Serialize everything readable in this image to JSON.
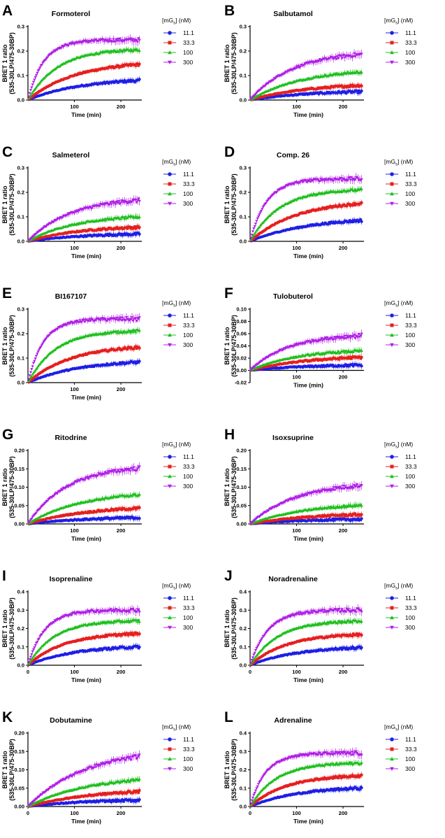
{
  "figure": {
    "legend_title": {
      "prefix": "[mG",
      "sub": "s",
      "suffix": "] (nM)"
    },
    "concentrations": [
      "11.1",
      "33.3",
      "100",
      "300"
    ],
    "series_colors": [
      "#1f1fe6",
      "#e61f1f",
      "#1fbf1f",
      "#b01fe6"
    ],
    "markers": [
      "circle",
      "square",
      "triangle-up",
      "triangle-down"
    ]
  },
  "chart_data": [
    {
      "type": "line",
      "panel": "A",
      "title": "Formoterol",
      "xlabel": "Time (min)",
      "ylabel": [
        "BRET 1 ratio",
        "(535-30LP/475-30BP)"
      ],
      "xlim": [
        0,
        245
      ],
      "ylim": [
        0,
        0.3
      ],
      "yticks": [
        "0.0",
        "0.1",
        "0.2",
        "0.3"
      ],
      "yticks_values": [
        0,
        0.1,
        0.2,
        0.3
      ],
      "xticks": [
        "100",
        "200"
      ],
      "xticks_values": [
        100,
        200
      ],
      "series": [
        {
          "name": "11.1",
          "plateau": 0.09,
          "k": 0.009
        },
        {
          "name": "33.3",
          "plateau": 0.16,
          "k": 0.01
        },
        {
          "name": "100",
          "plateau": 0.21,
          "k": 0.016
        },
        {
          "name": "300",
          "plateau": 0.245,
          "k": 0.03
        }
      ]
    },
    {
      "type": "line",
      "panel": "B",
      "title": "Salbutamol",
      "xlabel": "Time (min)",
      "ylabel": [
        "BRET 1 ratio",
        "(535-30LP/475-30BP)"
      ],
      "xlim": [
        0,
        245
      ],
      "ylim": [
        0,
        0.3
      ],
      "yticks": [
        "0.0",
        "0.1",
        "0.2",
        "0.3"
      ],
      "yticks_values": [
        0,
        0.1,
        0.2,
        0.3
      ],
      "xticks": [
        "100",
        "200"
      ],
      "xticks_values": [
        100,
        200
      ],
      "series": [
        {
          "name": "11.1",
          "plateau": 0.04,
          "k": 0.008
        },
        {
          "name": "33.3",
          "plateau": 0.07,
          "k": 0.008
        },
        {
          "name": "100",
          "plateau": 0.13,
          "k": 0.009
        },
        {
          "name": "300",
          "plateau": 0.2,
          "k": 0.011
        }
      ]
    },
    {
      "type": "line",
      "panel": "C",
      "title": "Salmeterol",
      "xlabel": "Time (min)",
      "ylabel": [
        "BRET 1 ratio",
        "(535-30LP/475-30BP)"
      ],
      "xlim": [
        0,
        245
      ],
      "ylim": [
        0,
        0.3
      ],
      "yticks": [
        "0.0",
        "0.1",
        "0.2",
        "0.3"
      ],
      "yticks_values": [
        0,
        0.1,
        0.2,
        0.3
      ],
      "xticks": [
        "100",
        "200"
      ],
      "xticks_values": [
        100,
        200
      ],
      "series": [
        {
          "name": "11.1",
          "plateau": 0.035,
          "k": 0.008
        },
        {
          "name": "33.3",
          "plateau": 0.065,
          "k": 0.009
        },
        {
          "name": "100",
          "plateau": 0.11,
          "k": 0.01
        },
        {
          "name": "300",
          "plateau": 0.18,
          "k": 0.011
        }
      ]
    },
    {
      "type": "line",
      "panel": "D",
      "title": "Comp. 26",
      "xlabel": "Time (min)",
      "ylabel": [
        "BRET 1 ratio",
        "(535-30LP/475-30BP)"
      ],
      "xlim": [
        0,
        245
      ],
      "ylim": [
        0,
        0.3
      ],
      "yticks": [
        "0.0",
        "0.1",
        "0.2",
        "0.3"
      ],
      "yticks_values": [
        0,
        0.1,
        0.2,
        0.3
      ],
      "xticks": [
        "100",
        "200"
      ],
      "xticks_values": [
        100,
        200
      ],
      "series": [
        {
          "name": "11.1",
          "plateau": 0.1,
          "k": 0.008
        },
        {
          "name": "33.3",
          "plateau": 0.17,
          "k": 0.01
        },
        {
          "name": "100",
          "plateau": 0.215,
          "k": 0.016
        },
        {
          "name": "300",
          "plateau": 0.255,
          "k": 0.028
        }
      ]
    },
    {
      "type": "line",
      "panel": "E",
      "title": "BI167107",
      "xlabel": "Time (min)",
      "ylabel": [
        "BRET 1 ratio",
        "(535-30LP/475-30BP)"
      ],
      "xlim": [
        0,
        245
      ],
      "ylim": [
        0,
        0.3
      ],
      "yticks": [
        "0.0",
        "0.1",
        "0.2",
        "0.3"
      ],
      "yticks_values": [
        0,
        0.1,
        0.2,
        0.3
      ],
      "xticks": [
        "100",
        "200"
      ],
      "xticks_values": [
        100,
        200
      ],
      "series": [
        {
          "name": "11.1",
          "plateau": 0.095,
          "k": 0.009
        },
        {
          "name": "33.3",
          "plateau": 0.155,
          "k": 0.011
        },
        {
          "name": "100",
          "plateau": 0.215,
          "k": 0.017
        },
        {
          "name": "300",
          "plateau": 0.26,
          "k": 0.03
        }
      ]
    },
    {
      "type": "line",
      "panel": "F",
      "title": "Tulobuterol",
      "xlabel": "Time (min)",
      "ylabel": [
        "BRET 1 ratio",
        "(535-30LP/475-30BP)"
      ],
      "xlim": [
        0,
        245
      ],
      "ylim": [
        -0.02,
        0.1
      ],
      "yticks": [
        "-0.02",
        "0.00",
        "0.02",
        "0.04",
        "0.06",
        "0.08",
        "0.10"
      ],
      "yticks_values": [
        -0.02,
        0,
        0.02,
        0.04,
        0.06,
        0.08,
        0.1
      ],
      "xticks": [
        "100",
        "200"
      ],
      "xticks_values": [
        100,
        200
      ],
      "series": [
        {
          "name": "11.1",
          "plateau": 0.01,
          "k": 0.008
        },
        {
          "name": "33.3",
          "plateau": 0.025,
          "k": 0.008
        },
        {
          "name": "100",
          "plateau": 0.035,
          "k": 0.01
        },
        {
          "name": "300",
          "plateau": 0.06,
          "k": 0.012
        }
      ]
    },
    {
      "type": "line",
      "panel": "G",
      "title": "Ritodrine",
      "xlabel": "Time (min)",
      "ylabel": [
        "BRET 1 ratio",
        "(535-30LP/475-30BP)"
      ],
      "xlim": [
        0,
        245
      ],
      "ylim": [
        0,
        0.2
      ],
      "yticks": [
        "0.00",
        "0.05",
        "0.10",
        "0.15",
        "0.20"
      ],
      "yticks_values": [
        0,
        0.05,
        0.1,
        0.15,
        0.2
      ],
      "xticks": [
        "100",
        "200"
      ],
      "xticks_values": [
        100,
        200
      ],
      "series": [
        {
          "name": "11.1",
          "plateau": 0.02,
          "k": 0.008
        },
        {
          "name": "33.3",
          "plateau": 0.05,
          "k": 0.008
        },
        {
          "name": "100",
          "plateau": 0.09,
          "k": 0.009
        },
        {
          "name": "300",
          "plateau": 0.16,
          "k": 0.012
        }
      ]
    },
    {
      "type": "line",
      "panel": "H",
      "title": "Isoxsuprine",
      "xlabel": "Time (min)",
      "ylabel": [
        "BRET 1 ratio",
        "(535-30LP/475-30BP)"
      ],
      "xlim": [
        0,
        245
      ],
      "ylim": [
        0,
        0.2
      ],
      "yticks": [
        "0.00",
        "0.05",
        "0.10",
        "0.15",
        "0.20"
      ],
      "yticks_values": [
        0,
        0.05,
        0.1,
        0.15,
        0.2
      ],
      "xticks": [
        "100",
        "200"
      ],
      "xticks_values": [
        100,
        200
      ],
      "series": [
        {
          "name": "11.1",
          "plateau": 0.015,
          "k": 0.008
        },
        {
          "name": "33.3",
          "plateau": 0.03,
          "k": 0.008
        },
        {
          "name": "100",
          "plateau": 0.06,
          "k": 0.008
        },
        {
          "name": "300",
          "plateau": 0.115,
          "k": 0.01
        }
      ]
    },
    {
      "type": "line",
      "panel": "I",
      "title": "Isoprenaline",
      "xlabel": "Time (min)",
      "ylabel": [
        "BRET 1 ratio",
        "(535-30LP/475-30BP)"
      ],
      "xlim": [
        0,
        245
      ],
      "ylim": [
        0,
        0.4
      ],
      "yticks": [
        "0.0",
        "0.1",
        "0.2",
        "0.3",
        "0.4"
      ],
      "yticks_values": [
        0,
        0.1,
        0.2,
        0.3,
        0.4
      ],
      "xticks": [
        "0",
        "100",
        "200"
      ],
      "xticks_values": [
        0,
        100,
        200
      ],
      "series": [
        {
          "name": "11.1",
          "plateau": 0.11,
          "k": 0.01
        },
        {
          "name": "33.3",
          "plateau": 0.18,
          "k": 0.013
        },
        {
          "name": "100",
          "plateau": 0.245,
          "k": 0.018
        },
        {
          "name": "300",
          "plateau": 0.3,
          "k": 0.028
        }
      ]
    },
    {
      "type": "line",
      "panel": "J",
      "title": "Noradrenaline",
      "xlabel": "Time (min)",
      "ylabel": [
        "BRET 1 ratio",
        "(535-30LP/475-30BP)"
      ],
      "xlim": [
        0,
        245
      ],
      "ylim": [
        0,
        0.4
      ],
      "yticks": [
        "0.0",
        "0.1",
        "0.2",
        "0.3",
        "0.4"
      ],
      "yticks_values": [
        0,
        0.1,
        0.2,
        0.3,
        0.4
      ],
      "xticks": [
        "0",
        "100",
        "200"
      ],
      "xticks_values": [
        0,
        100,
        200
      ],
      "series": [
        {
          "name": "11.1",
          "plateau": 0.105,
          "k": 0.01
        },
        {
          "name": "33.3",
          "plateau": 0.175,
          "k": 0.013
        },
        {
          "name": "100",
          "plateau": 0.245,
          "k": 0.017
        },
        {
          "name": "300",
          "plateau": 0.3,
          "k": 0.026
        }
      ]
    },
    {
      "type": "line",
      "panel": "K",
      "title": "Dobutamine",
      "xlabel": "Time (min)",
      "ylabel": [
        "BRET 1 ratio",
        "(535-30LP/475-30BP)"
      ],
      "xlim": [
        0,
        245
      ],
      "ylim": [
        0,
        0.2
      ],
      "yticks": [
        "0.00",
        "0.05",
        "0.10",
        "0.15",
        "0.20"
      ],
      "yticks_values": [
        0,
        0.05,
        0.1,
        0.15,
        0.2
      ],
      "xticks": [
        "0",
        "100",
        "200"
      ],
      "xticks_values": [
        0,
        100,
        200
      ],
      "series": [
        {
          "name": "11.1",
          "plateau": 0.02,
          "k": 0.008
        },
        {
          "name": "33.3",
          "plateau": 0.05,
          "k": 0.007
        },
        {
          "name": "100",
          "plateau": 0.085,
          "k": 0.008
        },
        {
          "name": "300",
          "plateau": 0.16,
          "k": 0.008
        }
      ]
    },
    {
      "type": "line",
      "panel": "L",
      "title": "Adrenaline",
      "xlabel": "Time (min)",
      "ylabel": [
        "BRET 1 ratio",
        "(535-30LP/475-30BP)"
      ],
      "xlim": [
        0,
        245
      ],
      "ylim": [
        0,
        0.4
      ],
      "yticks": [
        "0.0",
        "0.1",
        "0.2",
        "0.3",
        "0.4"
      ],
      "yticks_values": [
        0,
        0.1,
        0.2,
        0.3,
        0.4
      ],
      "xticks": [
        "0",
        "100",
        "200"
      ],
      "xticks_values": [
        0,
        100,
        200
      ],
      "series": [
        {
          "name": "11.1",
          "plateau": 0.11,
          "k": 0.01
        },
        {
          "name": "33.3",
          "plateau": 0.175,
          "k": 0.013
        },
        {
          "name": "100",
          "plateau": 0.24,
          "k": 0.018
        },
        {
          "name": "300",
          "plateau": 0.29,
          "k": 0.03
        }
      ]
    }
  ]
}
